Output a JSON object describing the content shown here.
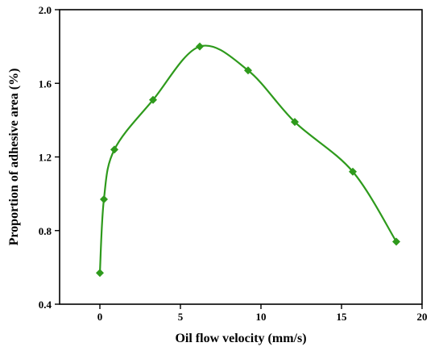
{
  "chart_data": {
    "type": "line",
    "xlabel": "Oil flow velocity (mm/s)",
    "ylabel": "Proportion of adhesive area (%)",
    "xlim": [
      -2.5,
      20
    ],
    "ylim": [
      0.4,
      2.0
    ],
    "xticks": [
      0,
      5,
      10,
      15,
      20
    ],
    "xtick_labels": [
      "0",
      "5",
      "10",
      "15",
      "20"
    ],
    "yticks": [
      0.4,
      0.8,
      1.2,
      1.6,
      2.0
    ],
    "ytick_labels": [
      "0.4",
      "0.8",
      "1.2",
      "1.6",
      "2.0"
    ],
    "grid": false,
    "series": [
      {
        "color": "#2e9a1c",
        "marker": "diamond",
        "smooth": true,
        "x": [
          0.0,
          0.25,
          0.9,
          3.3,
          6.2,
          9.2,
          12.1,
          15.7,
          18.4
        ],
        "y": [
          0.57,
          0.97,
          1.24,
          1.51,
          1.8,
          1.67,
          1.39,
          1.12,
          0.74
        ]
      }
    ]
  }
}
